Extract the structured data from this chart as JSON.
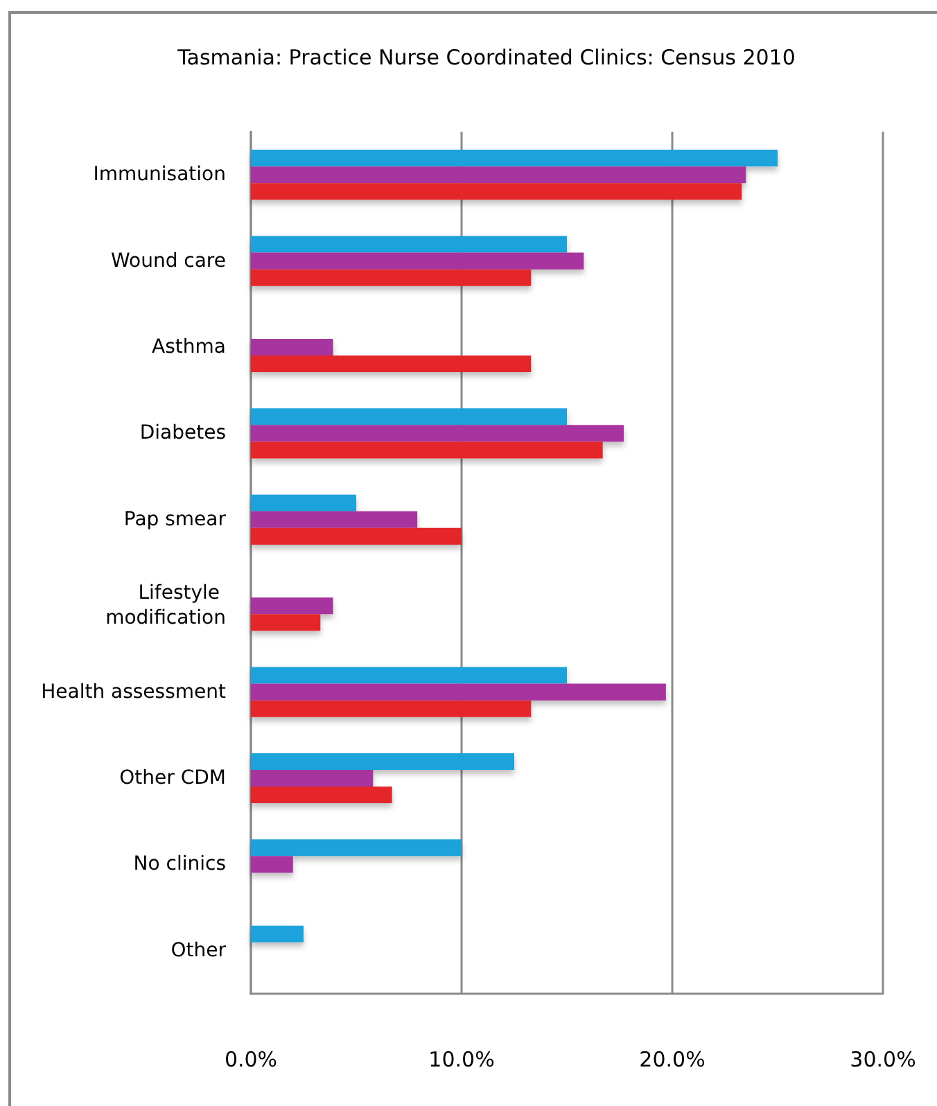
{
  "chart_data": {
    "type": "bar",
    "orientation": "horizontal",
    "title": "Tasmania: Practice Nurse Coordinated Clinics: Census 2010",
    "categories": [
      "Immunisation",
      "Wound care",
      "Asthma",
      "Diabetes",
      "Pap smear",
      "Lifestyle modification",
      "Health assessment",
      "Other CDM",
      "No clinics",
      "Other"
    ],
    "series": [
      {
        "color": "#1ea3dc",
        "values": [
          25.0,
          15.0,
          null,
          15.0,
          5.0,
          null,
          15.0,
          12.5,
          10.0,
          2.5
        ]
      },
      {
        "color": "#a8369f",
        "values": [
          23.5,
          15.8,
          3.9,
          17.7,
          7.9,
          3.9,
          19.7,
          5.8,
          2.0,
          null
        ]
      },
      {
        "color": "#e4262a",
        "values": [
          23.3,
          13.3,
          13.3,
          16.7,
          10.0,
          3.3,
          13.3,
          6.7,
          null,
          null
        ]
      }
    ],
    "xlim": [
      0,
      30
    ],
    "xticks": [
      {
        "value": 0,
        "label": "0.0%"
      },
      {
        "value": 10,
        "label": "10.0%"
      },
      {
        "value": 20,
        "label": "20.0%"
      },
      {
        "value": 30,
        "label": "30.0%"
      }
    ],
    "grid": "x"
  }
}
